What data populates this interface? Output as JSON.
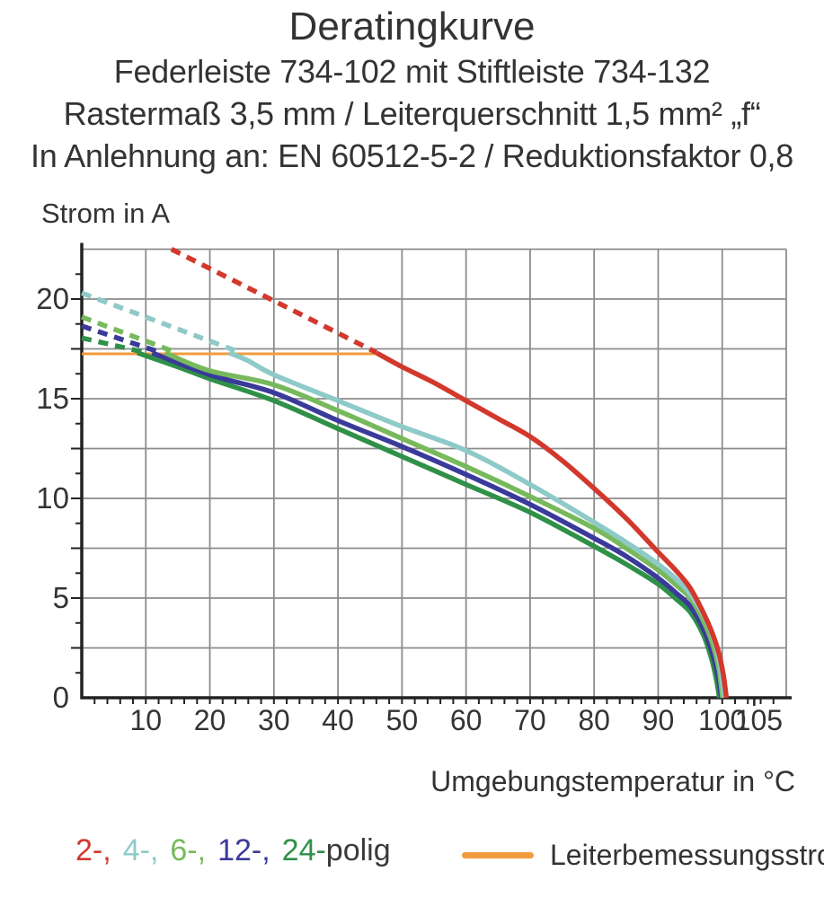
{
  "title": {
    "lines": [
      "Deratingkurve",
      "Federleiste 734-102 mit Stiftleiste 734-132",
      "Rastermaß 3,5 mm / Leiterquerschnitt 1,5 mm² „f“",
      "In Anlehnung an: EN 60512-5-2 / Reduktionsfaktor 0,8"
    ]
  },
  "chart_data": {
    "type": "line",
    "title": "Deratingkurve",
    "ylabel": "Strom in A",
    "xlabel": "Umgebungstemperatur in °C",
    "xlim": [
      0,
      110
    ],
    "ylim": [
      0,
      22.5
    ],
    "x_ticks": [
      10,
      20,
      30,
      40,
      50,
      60,
      70,
      80,
      90,
      100,
      105
    ],
    "y_ticks": [
      0,
      5,
      10,
      15,
      20
    ],
    "x_grid_step": 10,
    "y_grid_step": 2.5,
    "x_minor_tick_step": 2,
    "y_minor_tick_step": 1.25,
    "grid": true,
    "colors": {
      "grid": "#8c8c8c",
      "axis": "#222222",
      "text": "#333333"
    },
    "rated_current": {
      "label": "Leiterbemessungsstrom",
      "value": 17.25,
      "x_start": 0,
      "x_end": 46.2,
      "color": "#f09c3c"
    },
    "series": [
      {
        "name": "24-polig",
        "poles": 24,
        "color": "#2f9048",
        "dashed": [
          [
            0,
            18.05
          ],
          [
            9.5,
            17.35
          ]
        ],
        "solid": [
          [
            8.7,
            17.3
          ],
          [
            15,
            16.6
          ],
          [
            20,
            16.0
          ],
          [
            30,
            14.9
          ],
          [
            40,
            13.5
          ],
          [
            50,
            12.1
          ],
          [
            60,
            10.7
          ],
          [
            70,
            9.3
          ],
          [
            80,
            7.6
          ],
          [
            85,
            6.7
          ],
          [
            90,
            5.7
          ],
          [
            93,
            4.9
          ],
          [
            95,
            4.3
          ],
          [
            97,
            3.2
          ],
          [
            98.3,
            2.0
          ],
          [
            99.1,
            0.9
          ],
          [
            99.55,
            0
          ]
        ]
      },
      {
        "name": "12-polig",
        "poles": 12,
        "color": "#3a3a9a",
        "dashed": [
          [
            0,
            18.65
          ],
          [
            12,
            17.35
          ]
        ],
        "solid": [
          [
            11,
            17.3
          ],
          [
            20,
            16.2
          ],
          [
            30,
            15.3
          ],
          [
            40,
            13.9
          ],
          [
            50,
            12.6
          ],
          [
            60,
            11.2
          ],
          [
            70,
            9.7
          ],
          [
            80,
            8.0
          ],
          [
            85,
            7.1
          ],
          [
            90,
            6.0
          ],
          [
            93,
            5.2
          ],
          [
            95,
            4.6
          ],
          [
            97,
            3.5
          ],
          [
            98.5,
            2.2
          ],
          [
            99.4,
            1.0
          ],
          [
            99.85,
            0
          ]
        ]
      },
      {
        "name": "6-polig",
        "poles": 6,
        "color": "#77b95c",
        "dashed": [
          [
            0,
            19.1
          ],
          [
            14.5,
            17.35
          ]
        ],
        "solid": [
          [
            13,
            17.3
          ],
          [
            20,
            16.4
          ],
          [
            30,
            15.7
          ],
          [
            40,
            14.4
          ],
          [
            50,
            13.0
          ],
          [
            60,
            11.6
          ],
          [
            70,
            10.1
          ],
          [
            80,
            8.5
          ],
          [
            85,
            7.5
          ],
          [
            90,
            6.4
          ],
          [
            93,
            5.6
          ],
          [
            95,
            5.0
          ],
          [
            97,
            3.9
          ],
          [
            98.5,
            2.7
          ],
          [
            99.5,
            1.4
          ],
          [
            100.05,
            0
          ]
        ]
      },
      {
        "name": "4-polig",
        "poles": 4,
        "color": "#8ecac7",
        "dashed": [
          [
            0,
            20.3
          ],
          [
            24.5,
            17.35
          ]
        ],
        "solid": [
          [
            23,
            17.3
          ],
          [
            26,
            16.9
          ],
          [
            30,
            16.2
          ],
          [
            40,
            14.9
          ],
          [
            50,
            13.6
          ],
          [
            60,
            12.4
          ],
          [
            70,
            10.7
          ],
          [
            80,
            8.8
          ],
          [
            85,
            7.8
          ],
          [
            90,
            6.7
          ],
          [
            93,
            5.9
          ],
          [
            95,
            5.2
          ],
          [
            97,
            4.2
          ],
          [
            98.5,
            3.1
          ],
          [
            99.5,
            1.9
          ],
          [
            100.3,
            0
          ]
        ]
      },
      {
        "name": "2-polig",
        "poles": 2,
        "color": "#d2382c",
        "dashed": [
          [
            14,
            22.5
          ],
          [
            46,
            17.32
          ]
        ],
        "solid": [
          [
            46,
            17.3
          ],
          [
            50,
            16.6
          ],
          [
            55,
            15.8
          ],
          [
            60,
            14.9
          ],
          [
            65,
            14.0
          ],
          [
            70,
            13.1
          ],
          [
            75,
            11.9
          ],
          [
            80,
            10.5
          ],
          [
            85,
            9.0
          ],
          [
            90,
            7.3
          ],
          [
            93,
            6.3
          ],
          [
            95,
            5.5
          ],
          [
            97,
            4.3
          ],
          [
            98.5,
            3.2
          ],
          [
            99.5,
            2.2
          ],
          [
            100.2,
            1.1
          ],
          [
            100.65,
            0
          ]
        ]
      }
    ]
  },
  "legend": {
    "poles": {
      "parts": [
        {
          "text": "2-,",
          "color": "#d2382c",
          "gap": true
        },
        {
          "text": "4-,",
          "color": "#8ecac7",
          "gap": true
        },
        {
          "text": "6-,",
          "color": "#77b95c",
          "gap": true
        },
        {
          "text": "12-,",
          "color": "#3a3a9a",
          "gap": true
        },
        {
          "text": "24-",
          "color": "#2f9048",
          "gap": false
        },
        {
          "text": "polig",
          "color": "#3a3a3a",
          "gap": false
        }
      ]
    },
    "rated": {
      "label": "Leiterbemessungsstrom",
      "color": "#f09c3c"
    }
  }
}
